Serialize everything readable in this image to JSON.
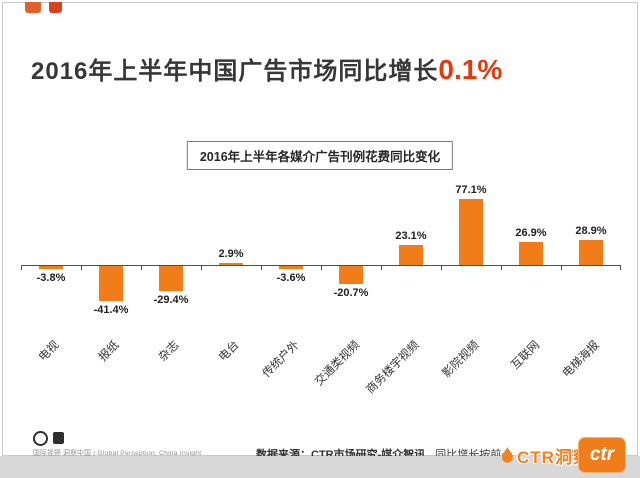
{
  "page": {
    "title": "2016年上半年中国广告市场同比增长",
    "title_highlight": "0.1%"
  },
  "chart_data": {
    "type": "bar",
    "title": "2016年上半年各媒介广告刊例花费同比变化",
    "categories": [
      "电视",
      "报纸",
      "杂志",
      "电台",
      "传统户外",
      "交通类视频",
      "商务楼宇视频",
      "影院视频",
      "互联网",
      "电梯海报"
    ],
    "values": [
      -3.8,
      -41.4,
      -29.4,
      2.9,
      -3.6,
      -20.7,
      23.1,
      77.1,
      26.9,
      28.9
    ],
    "value_labels": [
      "-3.8%",
      "-41.4%",
      "-29.4%",
      "2.9%",
      "-3.6%",
      "-20.7%",
      "23.1%",
      "77.1%",
      "26.9%",
      "28.9%"
    ],
    "xlabel": "",
    "ylabel": "",
    "ylim": [
      -50,
      85
    ],
    "grid": false,
    "legend": false,
    "bar_color": "#F07D1A",
    "axis_color": "#4d4d4d",
    "label_color": "#1f1f1f"
  },
  "footer": {
    "tagline": "国际视野 洞察中国 | Global Perception, China Insight",
    "source": "数据来源：CTR市场研究-媒介智讯",
    "note_visible_start": "同比增长按前一",
    "note_visible_end": "计算",
    "watermark": "CTR洞察",
    "logo_text": "ctr"
  },
  "colors": {
    "accent_orange": "#F07D1A",
    "highlight_red": "#E5380E",
    "panel_border": "#C9C9C9"
  }
}
